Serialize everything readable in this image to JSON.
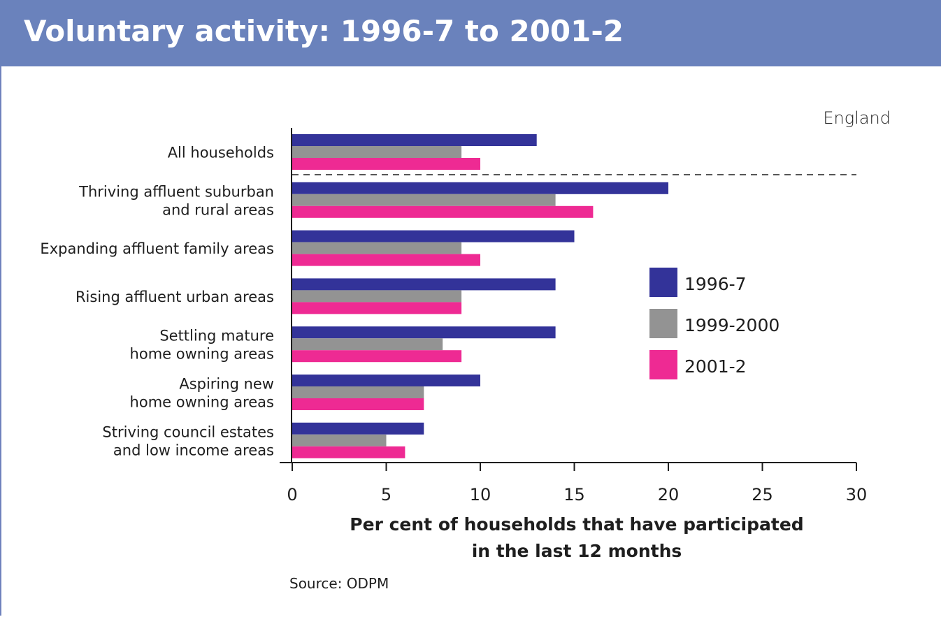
{
  "header": {
    "title": "Voluntary activity: 1996-7 to 2001-2"
  },
  "region_label": "England",
  "source_note": "Source: ODPM",
  "colors": {
    "header_bg": "#6a82bc",
    "series": [
      "#333399",
      "#939393",
      "#ee2a93"
    ]
  },
  "chart_data": {
    "type": "bar",
    "orientation": "horizontal",
    "categories": [
      [
        "All households"
      ],
      [
        "Thriving affluent suburban",
        "and rural areas"
      ],
      [
        "Expanding affluent family areas"
      ],
      [
        "Rising affluent urban areas"
      ],
      [
        "Settling mature",
        "home owning areas"
      ],
      [
        "Aspiring new",
        "home owning areas"
      ],
      [
        "Striving council estates",
        "and low income areas"
      ]
    ],
    "series": [
      {
        "name": "1996-7",
        "color": "#333399",
        "values": [
          13,
          20,
          15,
          14,
          14,
          10,
          7
        ]
      },
      {
        "name": "1999-2000",
        "color": "#939393",
        "values": [
          9,
          14,
          9,
          9,
          8,
          7,
          5
        ]
      },
      {
        "name": "2001-2",
        "color": "#ee2a93",
        "values": [
          10,
          16,
          10,
          9,
          9,
          7,
          6
        ]
      }
    ],
    "xlim": [
      0,
      30
    ],
    "xticks": [
      "0",
      "5",
      "10",
      "15",
      "20",
      "25",
      "30"
    ],
    "xlabel": [
      "Per cent of households that have participated",
      "in the last 12 months"
    ],
    "legend_position": "right",
    "separator_after_first_category": true
  }
}
